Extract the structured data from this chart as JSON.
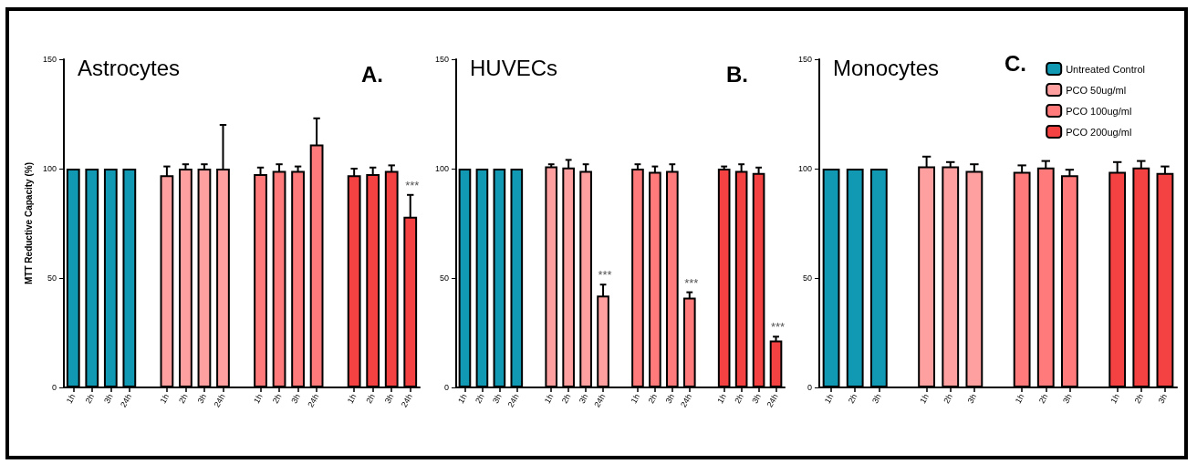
{
  "chart_data": [
    {
      "type": "bar",
      "title": "Astrocytes",
      "ylabel": "MTT Reductive Capacity (%)",
      "annotations": [
        "A."
      ],
      "categories": [
        "1h",
        "2h",
        "3h",
        "24h",
        null,
        "1h",
        "2h",
        "3h",
        "24h",
        null,
        "1h",
        "2h",
        "3h",
        "24h",
        null,
        "1h",
        "2h",
        "3h",
        "24h"
      ],
      "series": [
        {
          "color": "#1199b3",
          "values": [
            100,
            100,
            100,
            100,
            null,
            null,
            null,
            null,
            null,
            null,
            null,
            null,
            null,
            null,
            null,
            null,
            null,
            null,
            null
          ],
          "errors": [
            null,
            null,
            null,
            null,
            null,
            null,
            null,
            null,
            null,
            null,
            null,
            null,
            null,
            null,
            null,
            null,
            null,
            null,
            null
          ]
        },
        {
          "color": "#ffa0a0",
          "values": [
            null,
            null,
            null,
            null,
            null,
            97,
            100,
            100,
            100,
            null,
            null,
            null,
            null,
            null,
            null,
            null,
            null,
            null,
            null
          ],
          "errors": [
            null,
            null,
            null,
            null,
            null,
            4,
            2,
            2,
            20,
            null,
            null,
            null,
            null,
            null,
            null,
            null,
            null,
            null,
            null
          ]
        },
        {
          "color": "#ff7b7b",
          "values": [
            null,
            null,
            null,
            null,
            null,
            null,
            null,
            null,
            null,
            null,
            97.5,
            99,
            99,
            111,
            null,
            null,
            null,
            null,
            null
          ],
          "errors": [
            null,
            null,
            null,
            null,
            null,
            null,
            null,
            null,
            null,
            null,
            3,
            3,
            2,
            12,
            null,
            null,
            null,
            null,
            null
          ]
        },
        {
          "color": "#f44242",
          "values": [
            null,
            null,
            null,
            null,
            null,
            null,
            null,
            null,
            null,
            null,
            null,
            null,
            null,
            null,
            null,
            97,
            97.5,
            99,
            78
          ],
          "errors": [
            null,
            null,
            null,
            null,
            null,
            null,
            null,
            null,
            null,
            null,
            null,
            null,
            null,
            null,
            null,
            3,
            3,
            2.5,
            10
          ],
          "value_labels": [
            null,
            null,
            null,
            null,
            null,
            null,
            null,
            null,
            null,
            null,
            null,
            null,
            null,
            null,
            null,
            null,
            null,
            null,
            "***"
          ]
        }
      ],
      "ylim": [
        0,
        150
      ],
      "yticks": [
        0,
        50,
        100,
        150
      ],
      "grid": false,
      "legend": false
    },
    {
      "type": "bar",
      "title": "HUVECs",
      "annotations": [
        "B."
      ],
      "categories": [
        "1h",
        "2h",
        "3h",
        "24h",
        null,
        "1h",
        "2h",
        "3h",
        "24h",
        null,
        "1h",
        "2h",
        "3h",
        "24h",
        null,
        "1h",
        "2h",
        "3h",
        "24h"
      ],
      "series": [
        {
          "color": "#1199b3",
          "values": [
            100,
            100,
            100,
            100,
            null,
            null,
            null,
            null,
            null,
            null,
            null,
            null,
            null,
            null,
            null,
            null,
            null,
            null,
            null
          ],
          "errors": [
            null,
            null,
            null,
            null,
            null,
            null,
            null,
            null,
            null,
            null,
            null,
            null,
            null,
            null,
            null,
            null,
            null,
            null,
            null
          ]
        },
        {
          "color": "#ffa0a0",
          "values": [
            null,
            null,
            null,
            null,
            null,
            101,
            100.5,
            99,
            42,
            null,
            null,
            null,
            null,
            null,
            null,
            null,
            null,
            null,
            null
          ],
          "errors": [
            null,
            null,
            null,
            null,
            null,
            1,
            3.5,
            3,
            5,
            null,
            null,
            null,
            null,
            null,
            null,
            null,
            null,
            null,
            null
          ],
          "value_labels": [
            null,
            null,
            null,
            null,
            null,
            null,
            null,
            null,
            "***",
            null,
            null,
            null,
            null,
            null,
            null,
            null,
            null,
            null,
            null
          ]
        },
        {
          "color": "#ff7b7b",
          "values": [
            null,
            null,
            null,
            null,
            null,
            null,
            null,
            null,
            null,
            null,
            100,
            98.5,
            99,
            41,
            null,
            null,
            null,
            null,
            null
          ],
          "errors": [
            null,
            null,
            null,
            null,
            null,
            null,
            null,
            null,
            null,
            null,
            2,
            2.5,
            3,
            2.5,
            null,
            null,
            null,
            null,
            null
          ],
          "value_labels": [
            null,
            null,
            null,
            null,
            null,
            null,
            null,
            null,
            null,
            null,
            null,
            null,
            null,
            "***",
            null,
            null,
            null,
            null,
            null
          ]
        },
        {
          "color": "#f44242",
          "values": [
            null,
            null,
            null,
            null,
            null,
            null,
            null,
            null,
            null,
            null,
            null,
            null,
            null,
            null,
            null,
            100,
            99,
            98,
            21.5
          ],
          "errors": [
            null,
            null,
            null,
            null,
            null,
            null,
            null,
            null,
            null,
            null,
            null,
            null,
            null,
            null,
            null,
            1,
            3,
            2.5,
            1.7
          ],
          "value_labels": [
            null,
            null,
            null,
            null,
            null,
            null,
            null,
            null,
            null,
            null,
            null,
            null,
            null,
            null,
            null,
            null,
            null,
            null,
            "***"
          ]
        }
      ],
      "ylim": [
        0,
        150
      ],
      "yticks": [
        0,
        50,
        100,
        150
      ],
      "grid": false,
      "legend": false
    },
    {
      "type": "bar",
      "title": "Monocytes",
      "annotations": [
        "C."
      ],
      "categories": [
        "1h",
        "2h",
        "3h",
        null,
        "1h",
        "2h",
        "3h",
        null,
        "1h",
        "2h",
        "3h",
        null,
        "1h",
        "2h",
        "3h"
      ],
      "series": [
        {
          "name": "Untreated Control",
          "color": "#1199b3",
          "values": [
            100,
            100,
            100,
            null,
            null,
            null,
            null,
            null,
            null,
            null,
            null,
            null,
            null,
            null,
            null
          ],
          "errors": [
            null,
            null,
            null,
            null,
            null,
            null,
            null,
            null,
            null,
            null,
            null,
            null,
            null,
            null,
            null
          ]
        },
        {
          "name": "PCO 50ug/ml",
          "color": "#ffa0a0",
          "values": [
            null,
            null,
            null,
            null,
            101,
            101,
            99,
            null,
            null,
            null,
            null,
            null,
            null,
            null,
            null
          ],
          "errors": [
            null,
            null,
            null,
            null,
            4.5,
            2,
            3,
            null,
            null,
            null,
            null,
            null,
            null,
            null,
            null
          ]
        },
        {
          "name": "PCO 100ug/ml",
          "color": "#ff7b7b",
          "values": [
            null,
            null,
            null,
            null,
            null,
            null,
            null,
            null,
            98.5,
            100.5,
            97,
            null,
            null,
            null,
            null
          ],
          "errors": [
            null,
            null,
            null,
            null,
            null,
            null,
            null,
            null,
            3,
            3,
            2.5,
            null,
            null,
            null,
            null
          ]
        },
        {
          "name": "PCO 200ug/ml",
          "color": "#f44242",
          "values": [
            null,
            null,
            null,
            null,
            null,
            null,
            null,
            null,
            null,
            null,
            null,
            null,
            98.5,
            100.5,
            98
          ],
          "errors": [
            null,
            null,
            null,
            null,
            null,
            null,
            null,
            null,
            null,
            null,
            null,
            null,
            4.5,
            3,
            3
          ]
        }
      ],
      "ylim": [
        0,
        150
      ],
      "yticks": [
        0,
        50,
        100,
        150
      ],
      "grid": false,
      "legend": "top right"
    }
  ]
}
